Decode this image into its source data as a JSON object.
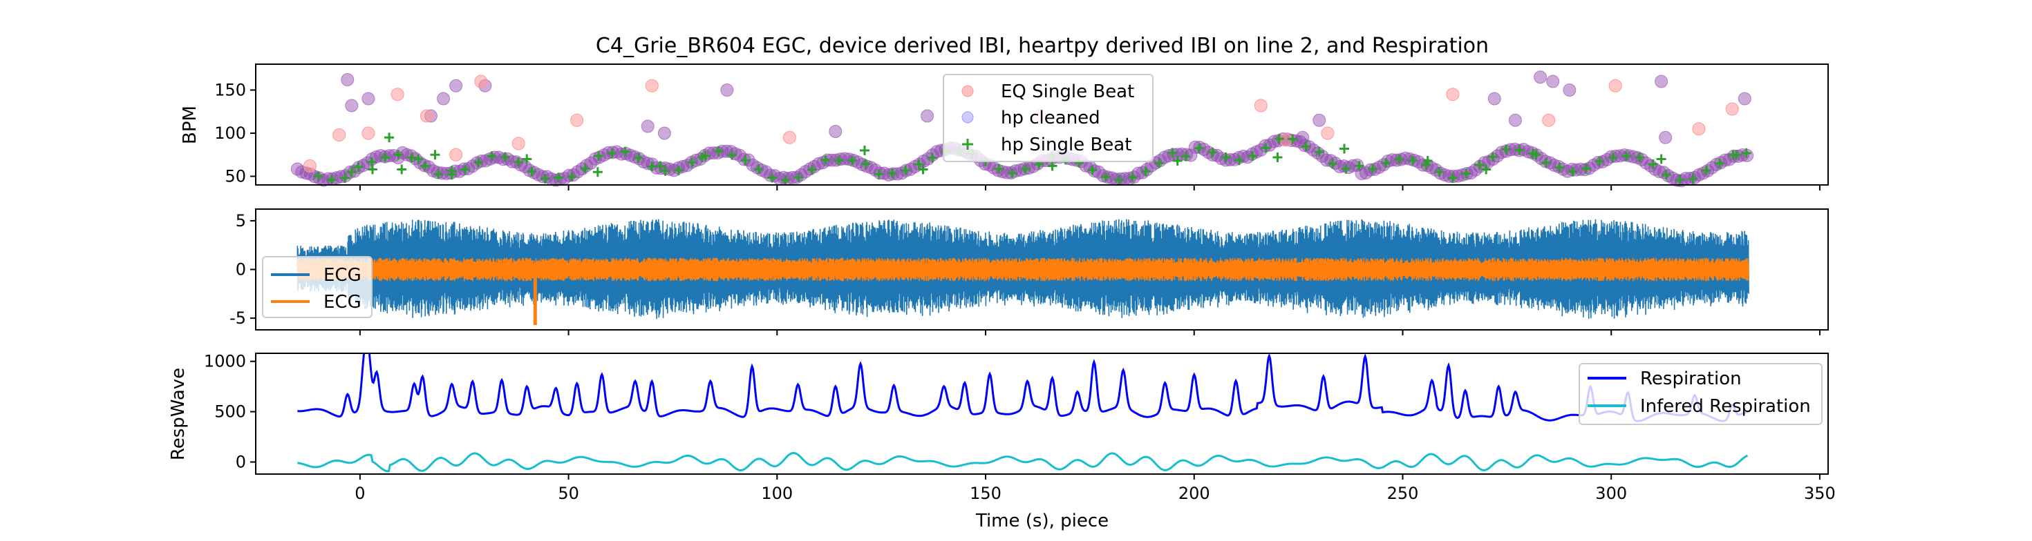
{
  "figure_title": "C4_Grie_BR604 EGC, device derived IBI, heartpy derived IBI on line 2, and Respiration",
  "xlabel": "Time (s), piece",
  "colors": {
    "eq_single_beat": "#ff9999",
    "hp_cleaned": "#8e44ad",
    "hp_single_beat": "#2ca02c",
    "ecg1": "#1f77b4",
    "ecg2": "#ff7f0e",
    "respiration": "#0000ff",
    "inferred_respiration": "#17becf"
  },
  "chart_data": [
    {
      "type": "scatter",
      "ylabel": "BPM",
      "xlim": [
        -25,
        352
      ],
      "ylim": [
        40,
        180
      ],
      "xticks": [
        0,
        50,
        100,
        150,
        200,
        250,
        300,
        350
      ],
      "xtick_labels_shown": false,
      "yticks": [
        50,
        100,
        150
      ],
      "legend_position": "top-center",
      "series": [
        {
          "name": "EQ Single Beat",
          "marker": "circle",
          "sample_x": [
            -12,
            -5,
            2,
            9,
            16,
            23,
            29,
            38,
            52,
            70,
            103,
            163,
            216,
            222,
            232,
            262,
            285,
            301,
            321,
            329
          ],
          "sample_y": [
            62,
            98,
            100,
            145,
            120,
            75,
            160,
            88,
            115,
            155,
            95,
            120,
            132,
            92,
            100,
            145,
            115,
            155,
            105,
            128
          ]
        },
        {
          "name": "hp cleaned",
          "marker": "circle",
          "series_formula": "heart-rate trace approx. 50-85 BPM, oscillating; plus scattered ectopic outliers 100-175 BPM",
          "outlier_x": [
            -3,
            -2,
            2,
            17,
            20,
            23,
            30,
            69,
            73,
            88,
            114,
            136,
            226,
            230,
            272,
            277,
            283,
            286,
            290,
            312,
            313,
            332
          ],
          "outlier_y": [
            162,
            132,
            140,
            120,
            140,
            155,
            155,
            108,
            100,
            150,
            102,
            120,
            95,
            115,
            140,
            115,
            165,
            160,
            150,
            160,
            95,
            140
          ]
        },
        {
          "name": "hp Single Beat",
          "marker": "plus",
          "sample_x": [
            -2,
            3,
            7,
            10,
            14,
            18,
            22,
            40,
            57,
            72,
            82,
            121,
            135,
            166,
            196,
            220,
            236,
            256,
            270,
            282,
            312,
            330
          ],
          "sample_y": [
            55,
            58,
            95,
            58,
            70,
            75,
            52,
            70,
            55,
            62,
            72,
            80,
            58,
            62,
            68,
            72,
            82,
            68,
            58,
            75,
            70,
            75
          ]
        }
      ]
    },
    {
      "type": "line",
      "ylabel": "",
      "xlim": [
        -25,
        352
      ],
      "ylim": [
        -6.2,
        6.2
      ],
      "xticks": [
        0,
        50,
        100,
        150,
        200,
        250,
        300,
        350
      ],
      "xtick_labels_shown": false,
      "yticks": [
        -5,
        0,
        5
      ],
      "legend_position": "center-left",
      "series": [
        {
          "name": "ECG",
          "x_range": [
            -15,
            333
          ],
          "amplitude_approx": 4.5,
          "description": "dense ECG waveform, roughly -5 to 5"
        },
        {
          "name": "ECG",
          "x_range": [
            -15,
            333
          ],
          "amplitude_approx": 1.2,
          "description": "filtered ECG waveform, roughly -1.5 to 1.5, with a spike to -5.7 near x=42"
        }
      ]
    },
    {
      "type": "line",
      "ylabel": "RespWave",
      "xlim": [
        -25,
        352
      ],
      "ylim": [
        -120,
        1080
      ],
      "xticks": [
        0,
        50,
        100,
        150,
        200,
        250,
        300,
        350
      ],
      "xtick_labels": [
        "0",
        "50",
        "100",
        "150",
        "200",
        "250",
        "300",
        "350"
      ],
      "yticks": [
        0,
        500,
        1000
      ],
      "legend_position": "top-right",
      "series": [
        {
          "name": "Respiration",
          "x_range": [
            -15,
            333
          ],
          "baseline_approx": 500,
          "peak_x": [
            -3,
            1,
            2,
            4,
            13,
            15,
            22,
            27,
            34,
            40,
            47,
            52,
            58,
            66,
            70,
            84,
            94,
            105,
            114,
            120,
            128,
            140,
            145,
            151,
            160,
            166,
            172,
            176,
            183,
            193,
            200,
            210,
            218,
            231,
            241,
            257,
            261,
            265,
            273,
            277,
            295,
            304,
            320,
            329
          ],
          "peak_y": [
            720,
            920,
            1010,
            860,
            780,
            880,
            730,
            800,
            820,
            760,
            720,
            810,
            880,
            760,
            840,
            780,
            990,
            760,
            800,
            930,
            760,
            700,
            800,
            880,
            760,
            860,
            700,
            1000,
            870,
            780,
            860,
            860,
            980,
            850,
            1000,
            760,
            990,
            780,
            810,
            700,
            790,
            760,
            680,
            640
          ]
        },
        {
          "name": "Infered Respiration",
          "x_range": [
            -15,
            333
          ],
          "baseline_approx": 0,
          "amplitude_approx": 90,
          "description": "smooth oscillation around 0, dips to -130 and peaks to +170"
        }
      ]
    }
  ]
}
